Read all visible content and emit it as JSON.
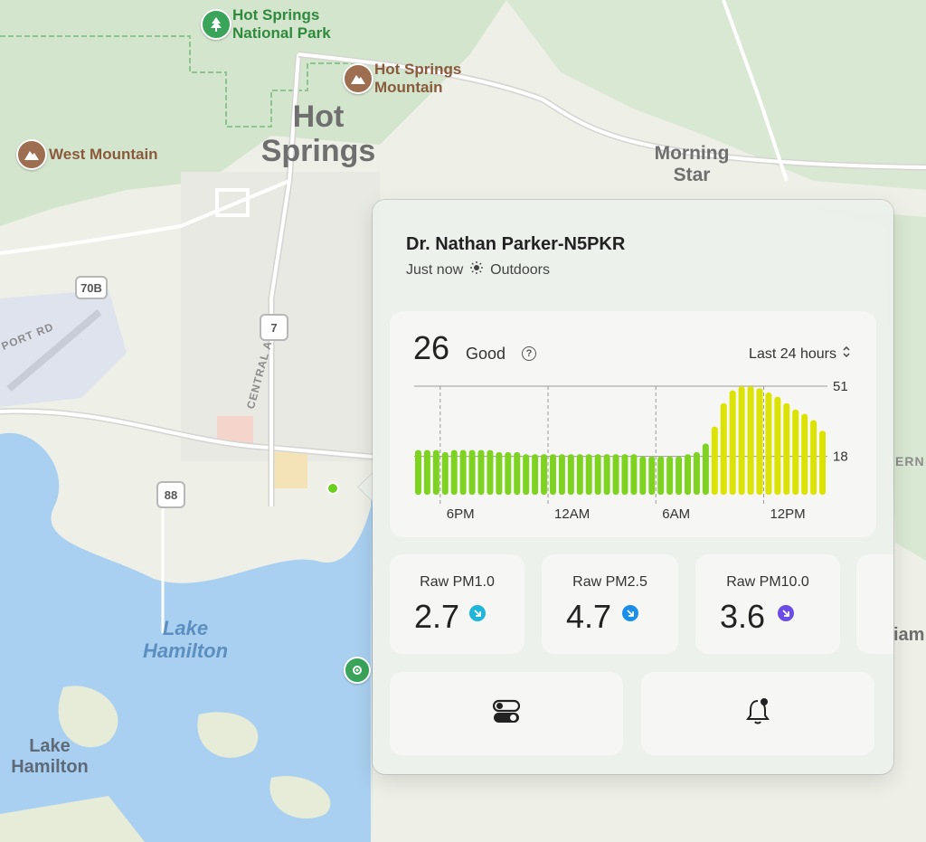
{
  "map": {
    "labels": {
      "national_park": "Hot Springs National Park",
      "national_park_line1": "Hot Springs",
      "national_park_line2": "National Park",
      "mountain1_line1": "Hot Springs",
      "mountain1_line2": "Mountain",
      "west_mountain": "West Mountain",
      "city_line1": "Hot",
      "city_line2": "Springs",
      "morning_line1": "Morning",
      "morning_line2": "Star",
      "road_central": "CENTRAL AVE",
      "road_airport": "PORT RD",
      "lake_line1": "Lake",
      "lake_line2": "Hamilton",
      "town_lake_line1": "Lake",
      "town_lake_line2": "Hamilton",
      "edge_right1": "ERN",
      "edge_right2": "iam"
    },
    "shields": [
      "70B",
      "7",
      "88"
    ],
    "colors": {
      "water": "#a9d0f0",
      "land": "#eef0e8",
      "forest": "#d5e6cf",
      "sensor_dot": "#6bd11f"
    }
  },
  "card": {
    "title": "Dr. Nathan Parker-N5PKR",
    "time": "Just now",
    "location": "Outdoors",
    "aqi": {
      "value": "26",
      "category": "Good",
      "help": "?",
      "range": "Last 24 hours"
    },
    "stats": [
      {
        "label": "Raw PM1.0",
        "value": "2.7",
        "color": "#1fb6d9"
      },
      {
        "label": "Raw PM2.5",
        "value": "4.7",
        "color": "#1a8ee8"
      },
      {
        "label": "Raw PM10.0",
        "value": "3.6",
        "color": "#6b4ce6"
      }
    ],
    "buttons": {
      "settings": "toggle-icon",
      "alerts": "bell-icon"
    }
  },
  "chart_data": {
    "type": "bar",
    "x_ticks": [
      "6PM",
      "12AM",
      "6AM",
      "12PM"
    ],
    "y_ticks": [
      51,
      18
    ],
    "ylim": [
      0,
      51
    ],
    "values": [
      21,
      21,
      21,
      20,
      21,
      21,
      21,
      21,
      21,
      20,
      20,
      20,
      19,
      19,
      19,
      19,
      19,
      19,
      19,
      19,
      19,
      19,
      19,
      19,
      19,
      18,
      18,
      18,
      18,
      18,
      19,
      20,
      24,
      32,
      43,
      49,
      51,
      51,
      50,
      48,
      46,
      43,
      40,
      38,
      35,
      30
    ],
    "colors": {
      "good": "#7ed321",
      "moderate": "#dce300"
    }
  }
}
